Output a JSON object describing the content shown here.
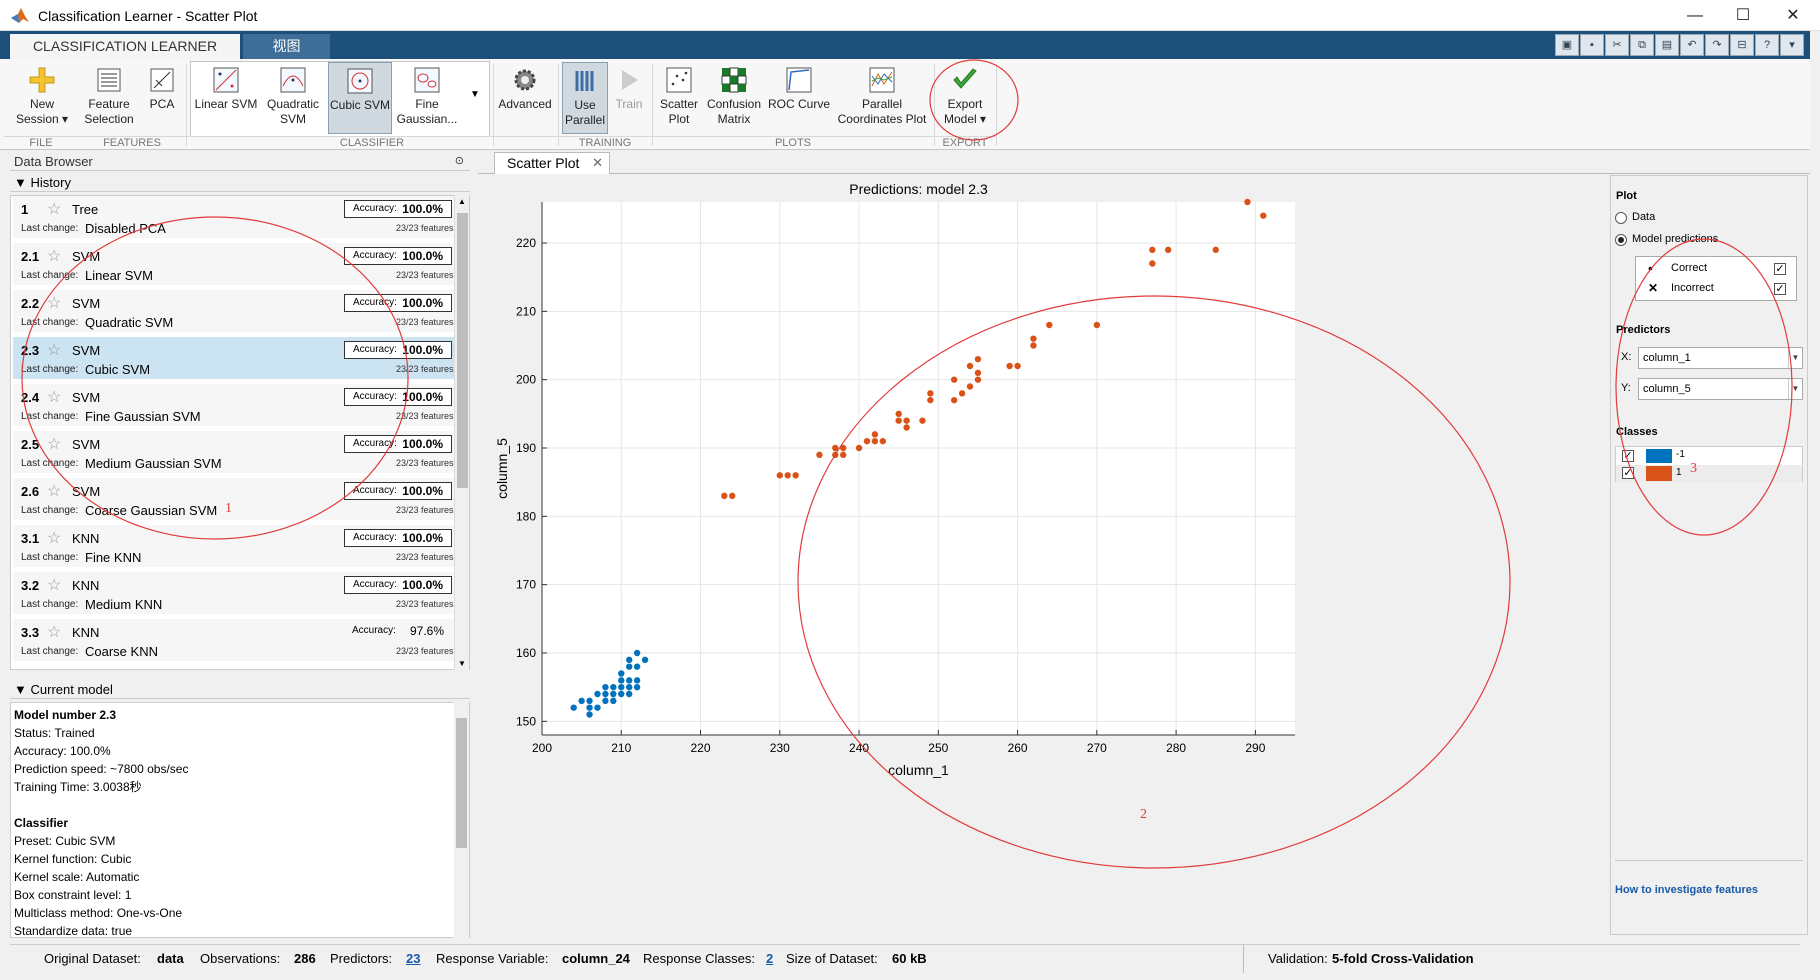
{
  "window": {
    "title": "Classification Learner - Scatter Plot",
    "minimize": "—",
    "maximize": "☐",
    "close": "✕"
  },
  "tabs": [
    {
      "label": "CLASSIFICATION LEARNER"
    },
    {
      "label": "视图"
    }
  ],
  "ribbon": {
    "new_session": "New Session",
    "feature_selection": "Feature Selection",
    "pca": "PCA",
    "linear_svm": "Linear SVM",
    "quadratic_svm": "Quadratic SVM",
    "cubic_svm": "Cubic SVM",
    "fine_gaussian": "Fine Gaussian...",
    "advanced": "Advanced",
    "use_parallel": "Use Parallel",
    "train": "Train",
    "scatter_plot": "Scatter Plot",
    "confusion_matrix": "Confusion Matrix",
    "roc_curve": "ROC Curve",
    "parallel_coords": "Parallel Coordinates Plot",
    "export_model": "Export Model",
    "groups": {
      "file": "FILE",
      "features": "FEATURES",
      "classifier": "CLASSIFIER",
      "training": "TRAINING",
      "plots": "PLOTS",
      "export": "EXPORT"
    }
  },
  "data_browser": {
    "title": "Data Browser",
    "history_title": "History",
    "current_model_title": "Current model"
  },
  "history": [
    {
      "num": "1",
      "type": "Tree",
      "last_change_label": "Last change:",
      "last_change": "Disabled PCA",
      "acc_label": "Accuracy:",
      "accuracy": "100.0%",
      "features": "23/23 features"
    },
    {
      "num": "2.1",
      "type": "SVM",
      "last_change_label": "Last change:",
      "last_change": "Linear SVM",
      "acc_label": "Accuracy:",
      "accuracy": "100.0%",
      "features": "23/23 features"
    },
    {
      "num": "2.2",
      "type": "SVM",
      "last_change_label": "Last change:",
      "last_change": "Quadratic SVM",
      "acc_label": "Accuracy:",
      "accuracy": "100.0%",
      "features": "23/23 features"
    },
    {
      "num": "2.3",
      "type": "SVM",
      "last_change_label": "Last change:",
      "last_change": "Cubic SVM",
      "acc_label": "Accuracy:",
      "accuracy": "100.0%",
      "features": "23/23 features"
    },
    {
      "num": "2.4",
      "type": "SVM",
      "last_change_label": "Last change:",
      "last_change": "Fine Gaussian SVM",
      "acc_label": "Accuracy:",
      "accuracy": "100.0%",
      "features": "23/23 features"
    },
    {
      "num": "2.5",
      "type": "SVM",
      "last_change_label": "Last change:",
      "last_change": "Medium Gaussian SVM",
      "acc_label": "Accuracy:",
      "accuracy": "100.0%",
      "features": "23/23 features"
    },
    {
      "num": "2.6",
      "type": "SVM",
      "last_change_label": "Last change:",
      "last_change": "Coarse Gaussian SVM",
      "acc_label": "Accuracy:",
      "accuracy": "100.0%",
      "features": "23/23 features"
    },
    {
      "num": "3.1",
      "type": "KNN",
      "last_change_label": "Last change:",
      "last_change": "Fine KNN",
      "acc_label": "Accuracy:",
      "accuracy": "100.0%",
      "features": "23/23 features"
    },
    {
      "num": "3.2",
      "type": "KNN",
      "last_change_label": "Last change:",
      "last_change": "Medium KNN",
      "acc_label": "Accuracy:",
      "accuracy": "100.0%",
      "features": "23/23 features"
    },
    {
      "num": "3.3",
      "type": "KNN",
      "last_change_label": "Last change:",
      "last_change": "Coarse KNN",
      "acc_label": "Accuracy:",
      "accuracy": "97.6%",
      "features": "23/23 features"
    }
  ],
  "current_model": {
    "lines": [
      {
        "text": "Model number 2.3",
        "bold": true
      },
      {
        "text": "Status: Trained"
      },
      {
        "text": "Accuracy: 100.0%"
      },
      {
        "text": "Prediction speed: ~7800 obs/sec"
      },
      {
        "text": "Training Time: 3.0038秒"
      },
      {
        "text": ""
      },
      {
        "text": "Classifier",
        "bold": true
      },
      {
        "text": "Preset: Cubic SVM"
      },
      {
        "text": "Kernel function: Cubic"
      },
      {
        "text": "Kernel scale: Automatic"
      },
      {
        "text": "Box constraint level: 1"
      },
      {
        "text": "Multiclass method: One-vs-One"
      },
      {
        "text": "Standardize data: true"
      }
    ]
  },
  "document_tab": {
    "label": "Scatter Plot",
    "close": "✕"
  },
  "right_panel": {
    "plot_header": "Plot",
    "data_option": "Data",
    "predictions_option": "Model predictions",
    "correct_label": "Correct",
    "incorrect_label": "Incorrect",
    "predictors_header": "Predictors",
    "x_label": "X:",
    "x_value": "column_1",
    "y_label": "Y:",
    "y_value": "column_5",
    "classes_header": "Classes",
    "class_neg": "-1",
    "class_pos": "1",
    "help_link": "How to investigate features"
  },
  "status_bar": {
    "original_dataset_label": "Original Dataset:",
    "original_dataset": "data",
    "observations_label": "Observations:",
    "observations": "286",
    "predictors_label": "Predictors:",
    "predictors": "23",
    "response_label": "Response Variable:",
    "response": "column_24",
    "classes_label": "Response Classes:",
    "classes": "2",
    "size_label": "Size of Dataset:",
    "size": "60 kB",
    "validation_label": "Validation:",
    "validation": "5-fold Cross-Validation"
  },
  "annotations": {
    "a1": "1",
    "a2": "2",
    "a3": "3"
  },
  "colors": {
    "class_neg": "#0072bd",
    "class_pos": "#d95319",
    "accent": "#1c4f7a",
    "annotation": "#e23b3b"
  },
  "chart_data": {
    "type": "scatter",
    "title": "Predictions: model 2.3",
    "xlabel": "column_1",
    "ylabel": "column_5",
    "xlim": [
      200,
      295
    ],
    "ylim": [
      148,
      226
    ],
    "xticks": [
      200,
      210,
      220,
      230,
      240,
      250,
      260,
      270,
      280,
      290
    ],
    "yticks": [
      150,
      160,
      170,
      180,
      190,
      200,
      210,
      220
    ],
    "grid": true,
    "series": [
      {
        "name": "-1",
        "color": "#0072bd",
        "points": [
          [
            204,
            152
          ],
          [
            205,
            153
          ],
          [
            206,
            151
          ],
          [
            206,
            153
          ],
          [
            207,
            152
          ],
          [
            207,
            154
          ],
          [
            208,
            153
          ],
          [
            208,
            154
          ],
          [
            209,
            153
          ],
          [
            209,
            154
          ],
          [
            209,
            155
          ],
          [
            210,
            154
          ],
          [
            210,
            155
          ],
          [
            210,
            156
          ],
          [
            211,
            154
          ],
          [
            211,
            155
          ],
          [
            211,
            156
          ],
          [
            212,
            155
          ],
          [
            212,
            156
          ],
          [
            212,
            158
          ],
          [
            211,
            158
          ],
          [
            211,
            159
          ],
          [
            212,
            160
          ],
          [
            213,
            159
          ],
          [
            206,
            152
          ],
          [
            208,
            155
          ],
          [
            210,
            157
          ]
        ]
      },
      {
        "name": "1",
        "color": "#d95319",
        "points": [
          [
            223,
            183
          ],
          [
            224,
            183
          ],
          [
            230,
            186
          ],
          [
            231,
            186
          ],
          [
            232,
            186
          ],
          [
            235,
            189
          ],
          [
            237,
            189
          ],
          [
            237,
            190
          ],
          [
            238,
            189
          ],
          [
            238,
            190
          ],
          [
            240,
            190
          ],
          [
            241,
            191
          ],
          [
            242,
            191
          ],
          [
            242,
            192
          ],
          [
            243,
            191
          ],
          [
            245,
            194
          ],
          [
            245,
            195
          ],
          [
            246,
            193
          ],
          [
            246,
            194
          ],
          [
            248,
            194
          ],
          [
            249,
            197
          ],
          [
            249,
            198
          ],
          [
            252,
            197
          ],
          [
            252,
            200
          ],
          [
            253,
            198
          ],
          [
            254,
            199
          ],
          [
            254,
            202
          ],
          [
            255,
            200
          ],
          [
            255,
            201
          ],
          [
            255,
            203
          ],
          [
            259,
            202
          ],
          [
            260,
            202
          ],
          [
            262,
            205
          ],
          [
            262,
            206
          ],
          [
            264,
            208
          ],
          [
            270,
            208
          ],
          [
            277,
            217
          ],
          [
            277,
            219
          ],
          [
            279,
            219
          ],
          [
            285,
            219
          ],
          [
            289,
            226
          ],
          [
            291,
            224
          ]
        ]
      }
    ]
  }
}
